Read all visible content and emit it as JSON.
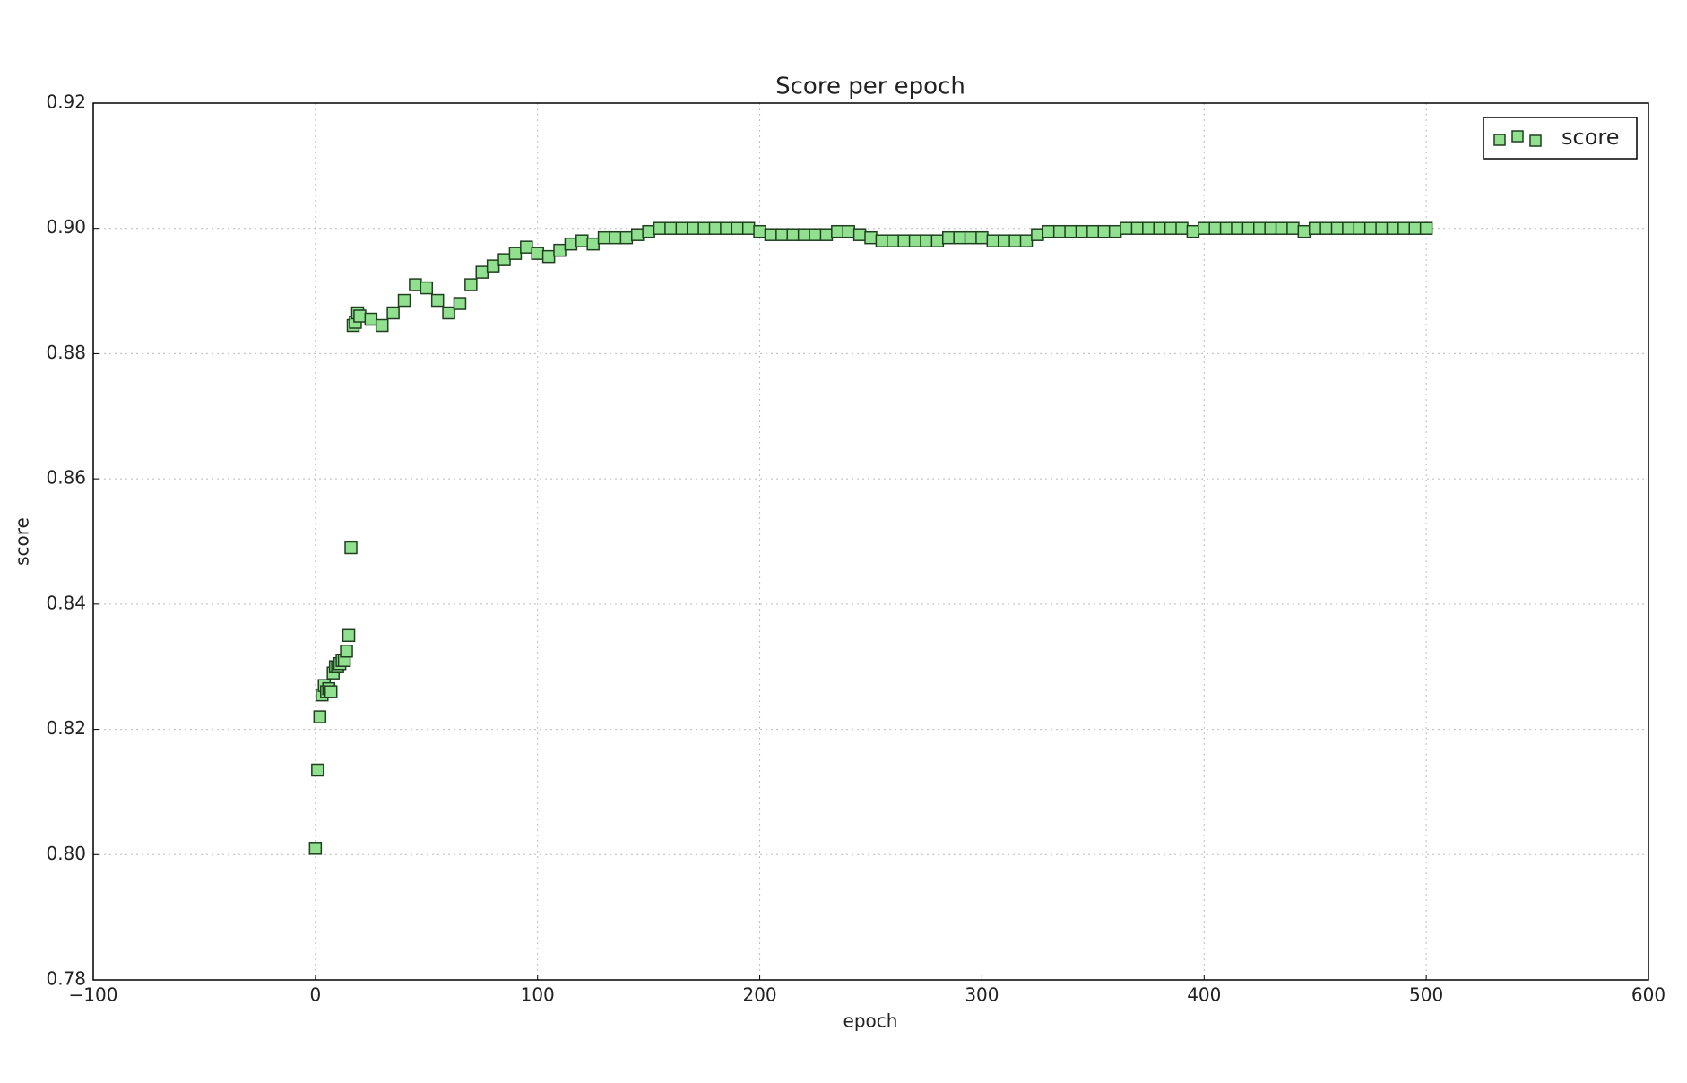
{
  "chart_data": {
    "type": "scatter",
    "title": "Score per epoch",
    "x_label": "epoch",
    "y_label": "score",
    "x": [
      0,
      1,
      2,
      3,
      4,
      5,
      6,
      7,
      8,
      9,
      10,
      11,
      12,
      13,
      14,
      15,
      16,
      17,
      18,
      19,
      20,
      25,
      30,
      35,
      40,
      45,
      50,
      55,
      60,
      65,
      70,
      75,
      80,
      85,
      90,
      95,
      100,
      105,
      110,
      115,
      120,
      125,
      130,
      135,
      140,
      145,
      150,
      155,
      160,
      165,
      170,
      175,
      180,
      185,
      190,
      195,
      200,
      205,
      210,
      215,
      220,
      225,
      230,
      235,
      240,
      245,
      250,
      255,
      260,
      265,
      270,
      275,
      280,
      285,
      290,
      295,
      300,
      305,
      310,
      315,
      320,
      325,
      330,
      335,
      340,
      345,
      350,
      355,
      360,
      365,
      370,
      375,
      380,
      385,
      390,
      395,
      400,
      405,
      410,
      415,
      420,
      425,
      430,
      435,
      440,
      445,
      450,
      455,
      460,
      465,
      470,
      475,
      480,
      485,
      490,
      495,
      500
    ],
    "series": [
      {
        "name": "score",
        "color": "#90e090",
        "edge_color": "#1f3f1f",
        "values": [
          0.801,
          0.8135,
          0.822,
          0.8255,
          0.827,
          0.826,
          0.8265,
          0.826,
          0.829,
          0.83,
          0.83,
          0.8305,
          0.831,
          0.831,
          0.8325,
          0.835,
          0.849,
          0.8845,
          0.885,
          0.8865,
          0.886,
          0.8855,
          0.8845,
          0.8865,
          0.8885,
          0.891,
          0.8905,
          0.8885,
          0.8865,
          0.888,
          0.891,
          0.893,
          0.894,
          0.895,
          0.896,
          0.897,
          0.896,
          0.8955,
          0.8965,
          0.8975,
          0.898,
          0.8975,
          0.8985,
          0.8985,
          0.8985,
          0.899,
          0.8995,
          0.9,
          0.9,
          0.9,
          0.9,
          0.9,
          0.9,
          0.9,
          0.9,
          0.9,
          0.8995,
          0.899,
          0.899,
          0.899,
          0.899,
          0.899,
          0.899,
          0.8995,
          0.8995,
          0.899,
          0.8985,
          0.898,
          0.898,
          0.898,
          0.898,
          0.898,
          0.898,
          0.8985,
          0.8985,
          0.8985,
          0.8985,
          0.898,
          0.898,
          0.898,
          0.898,
          0.899,
          0.8995,
          0.8995,
          0.8995,
          0.8995,
          0.8995,
          0.8995,
          0.8995,
          0.9,
          0.9,
          0.9,
          0.9,
          0.9,
          0.9,
          0.8995,
          0.9,
          0.9,
          0.9,
          0.9,
          0.9,
          0.9,
          0.9,
          0.9,
          0.9,
          0.8995,
          0.9,
          0.9,
          0.9,
          0.9,
          0.9,
          0.9,
          0.9,
          0.9,
          0.9,
          0.9,
          0.9
        ]
      }
    ],
    "xlim": [
      -100,
      600
    ],
    "xticks": [
      {
        "value": -100,
        "label": "−100"
      },
      0,
      100,
      200,
      300,
      400,
      500,
      600
    ],
    "ylim": [
      0.78,
      0.92
    ],
    "yticks": [
      0.78,
      {
        "value": 0.8,
        "label": "0.80"
      },
      0.82,
      0.84,
      0.86,
      0.88,
      {
        "value": 0.9,
        "label": "0.90"
      },
      0.92
    ],
    "grid": true,
    "legend": "upper right"
  }
}
